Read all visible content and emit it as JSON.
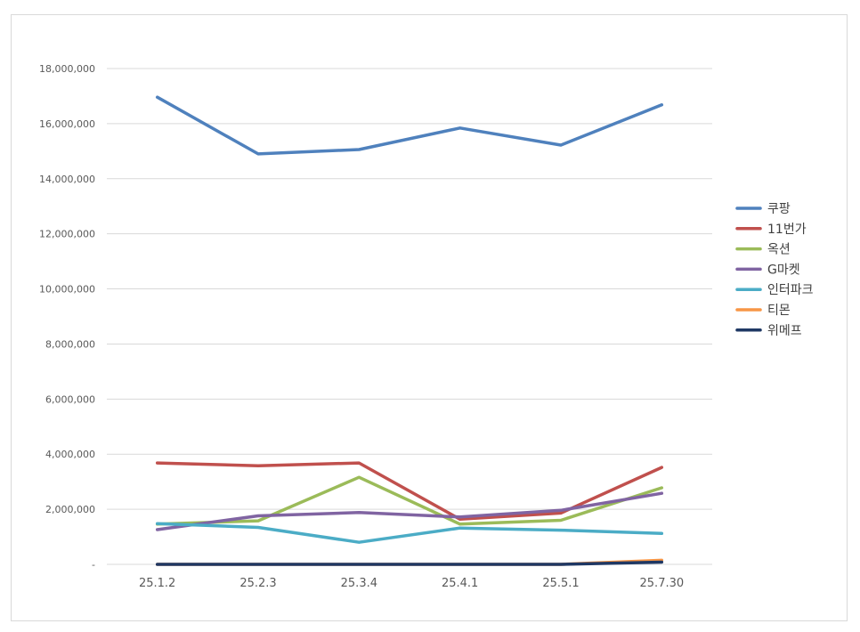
{
  "chart_data": {
    "type": "line",
    "title": "",
    "xlabel": "",
    "ylabel": "",
    "categories": [
      "25.1.2",
      "25.2.3",
      "25.3.4",
      "25.4.1",
      "25.5.1",
      "25.7.30"
    ],
    "ylim": [
      0,
      18000000
    ],
    "yticks": [
      0,
      2000000,
      4000000,
      6000000,
      8000000,
      10000000,
      12000000,
      14000000,
      16000000,
      18000000
    ],
    "ytick_labels": [
      "-",
      "2,000,000",
      "4,000,000",
      "6,000,000",
      "8,000,000",
      "10,000,000",
      "12,000,000",
      "14,000,000",
      "16,000,000",
      "18,000,000"
    ],
    "grid": true,
    "legend_position": "right",
    "series": [
      {
        "name": "쿠팡",
        "color": "#4f81bd",
        "values": [
          16960000,
          14900000,
          15060000,
          15840000,
          15220000,
          16680000
        ]
      },
      {
        "name": "11번가",
        "color": "#c0504d",
        "values": [
          3680000,
          3580000,
          3680000,
          1640000,
          1860000,
          3520000
        ]
      },
      {
        "name": "옥션",
        "color": "#9bbb59",
        "values": [
          1460000,
          1580000,
          3160000,
          1460000,
          1600000,
          2780000
        ]
      },
      {
        "name": "G마켓",
        "color": "#8064a2",
        "values": [
          1260000,
          1760000,
          1880000,
          1720000,
          1960000,
          2580000
        ]
      },
      {
        "name": "인터파크",
        "color": "#4bacc6",
        "values": [
          1480000,
          1340000,
          800000,
          1320000,
          1240000,
          1120000
        ]
      },
      {
        "name": "티몬",
        "color": "#f79646",
        "values": [
          0,
          0,
          0,
          0,
          0,
          150000
        ]
      },
      {
        "name": "위메프",
        "color": "#1f3864",
        "values": [
          0,
          0,
          0,
          0,
          0,
          80000
        ]
      }
    ]
  }
}
